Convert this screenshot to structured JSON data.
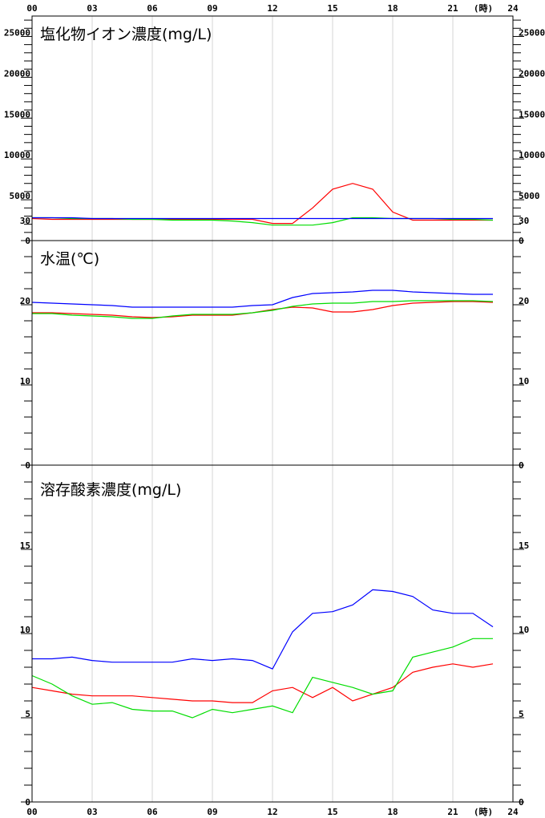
{
  "chart_data": {
    "type": "line",
    "hour_unit_label": "(時)",
    "x_ticks": [
      "00",
      "03",
      "06",
      "09",
      "12",
      "15",
      "18",
      "21",
      "24"
    ],
    "x": [
      0,
      1,
      2,
      3,
      4,
      5,
      6,
      7,
      8,
      9,
      10,
      11,
      12,
      13,
      14,
      15,
      16,
      17,
      18,
      19,
      20,
      21,
      22,
      23
    ],
    "xlim": [
      0,
      24
    ],
    "colors": {
      "red": "#ff0000",
      "green": "#00dd00",
      "blue": "#0000ff"
    },
    "panels": [
      {
        "title": "塩化物イオン濃度(mg/L)",
        "ylim": [
          0,
          27500
        ],
        "major_ticks": [
          0,
          5000,
          10000,
          15000,
          20000,
          25000
        ],
        "minor_step": 1000,
        "tick_labels": [
          "0",
          "5000",
          "10000",
          "15000",
          "20000",
          "25000"
        ],
        "series": [
          {
            "color": "red",
            "values": [
              2700,
              2600,
              2600,
              2600,
              2600,
              2600,
              2600,
              2600,
              2600,
              2600,
              2600,
              2600,
              2100,
              2100,
              4000,
              6300,
              7000,
              6300,
              3500,
              2500,
              2500,
              2500,
              2500,
              2500
            ]
          },
          {
            "color": "green",
            "values": [
              2800,
              2800,
              2700,
              2700,
              2700,
              2600,
              2600,
              2500,
              2500,
              2500,
              2400,
              2200,
              1900,
              1900,
              1900,
              2200,
              2800,
              2800,
              2700,
              2700,
              2700,
              2600,
              2600,
              2500
            ]
          },
          {
            "color": "blue",
            "values": [
              2800,
              2800,
              2800,
              2700,
              2700,
              2700,
              2700,
              2700,
              2700,
              2700,
              2700,
              2700,
              2700,
              2700,
              2700,
              2700,
              2700,
              2700,
              2700,
              2700,
              2700,
              2700,
              2700,
              2700
            ]
          }
        ]
      },
      {
        "title": "水温(℃)",
        "ylim": [
          0,
          28
        ],
        "major_ticks": [
          0,
          10,
          20,
          30
        ],
        "minor_step": 2,
        "tick_labels": [
          "0",
          "10",
          "20",
          "30"
        ],
        "series": [
          {
            "color": "red",
            "values": [
              19.0,
              19.0,
              18.9,
              18.8,
              18.7,
              18.5,
              18.4,
              18.5,
              18.7,
              18.7,
              18.7,
              19.0,
              19.4,
              19.7,
              19.6,
              19.1,
              19.1,
              19.4,
              19.9,
              20.2,
              20.3,
              20.4,
              20.4,
              20.3
            ]
          },
          {
            "color": "green",
            "values": [
              18.9,
              18.9,
              18.7,
              18.6,
              18.5,
              18.3,
              18.3,
              18.6,
              18.8,
              18.8,
              18.8,
              19.0,
              19.3,
              19.8,
              20.1,
              20.2,
              20.2,
              20.4,
              20.4,
              20.5,
              20.5,
              20.5,
              20.5,
              20.4
            ]
          },
          {
            "color": "blue",
            "values": [
              20.3,
              20.2,
              20.1,
              20.0,
              19.9,
              19.7,
              19.7,
              19.7,
              19.7,
              19.7,
              19.7,
              19.9,
              20.0,
              20.9,
              21.4,
              21.5,
              21.6,
              21.8,
              21.8,
              21.6,
              21.5,
              21.4,
              21.3,
              21.3
            ]
          }
        ]
      },
      {
        "title": "溶存酸素濃度(mg/L)",
        "ylim": [
          0,
          20
        ],
        "major_ticks": [
          0,
          5,
          10,
          15
        ],
        "minor_step": 1,
        "tick_labels": [
          "0",
          "5",
          "10",
          "15"
        ],
        "series": [
          {
            "color": "red",
            "values": [
              6.8,
              6.6,
              6.4,
              6.3,
              6.3,
              6.3,
              6.2,
              6.1,
              6.0,
              6.0,
              5.9,
              5.9,
              6.6,
              6.8,
              6.2,
              6.8,
              6.0,
              6.4,
              6.8,
              7.7,
              8.0,
              8.2,
              8.0,
              8.2
            ]
          },
          {
            "color": "green",
            "values": [
              7.5,
              7.0,
              6.3,
              5.8,
              5.9,
              5.5,
              5.4,
              5.4,
              5.0,
              5.5,
              5.3,
              5.5,
              5.7,
              5.3,
              7.4,
              7.1,
              6.8,
              6.4,
              6.6,
              8.6,
              8.9,
              9.2,
              9.7,
              9.7
            ]
          },
          {
            "color": "blue",
            "values": [
              8.5,
              8.5,
              8.6,
              8.4,
              8.3,
              8.3,
              8.3,
              8.3,
              8.5,
              8.4,
              8.5,
              8.4,
              7.9,
              10.1,
              11.2,
              11.3,
              11.7,
              12.6,
              12.5,
              12.2,
              11.4,
              11.2,
              11.2,
              10.4
            ]
          }
        ]
      }
    ]
  }
}
